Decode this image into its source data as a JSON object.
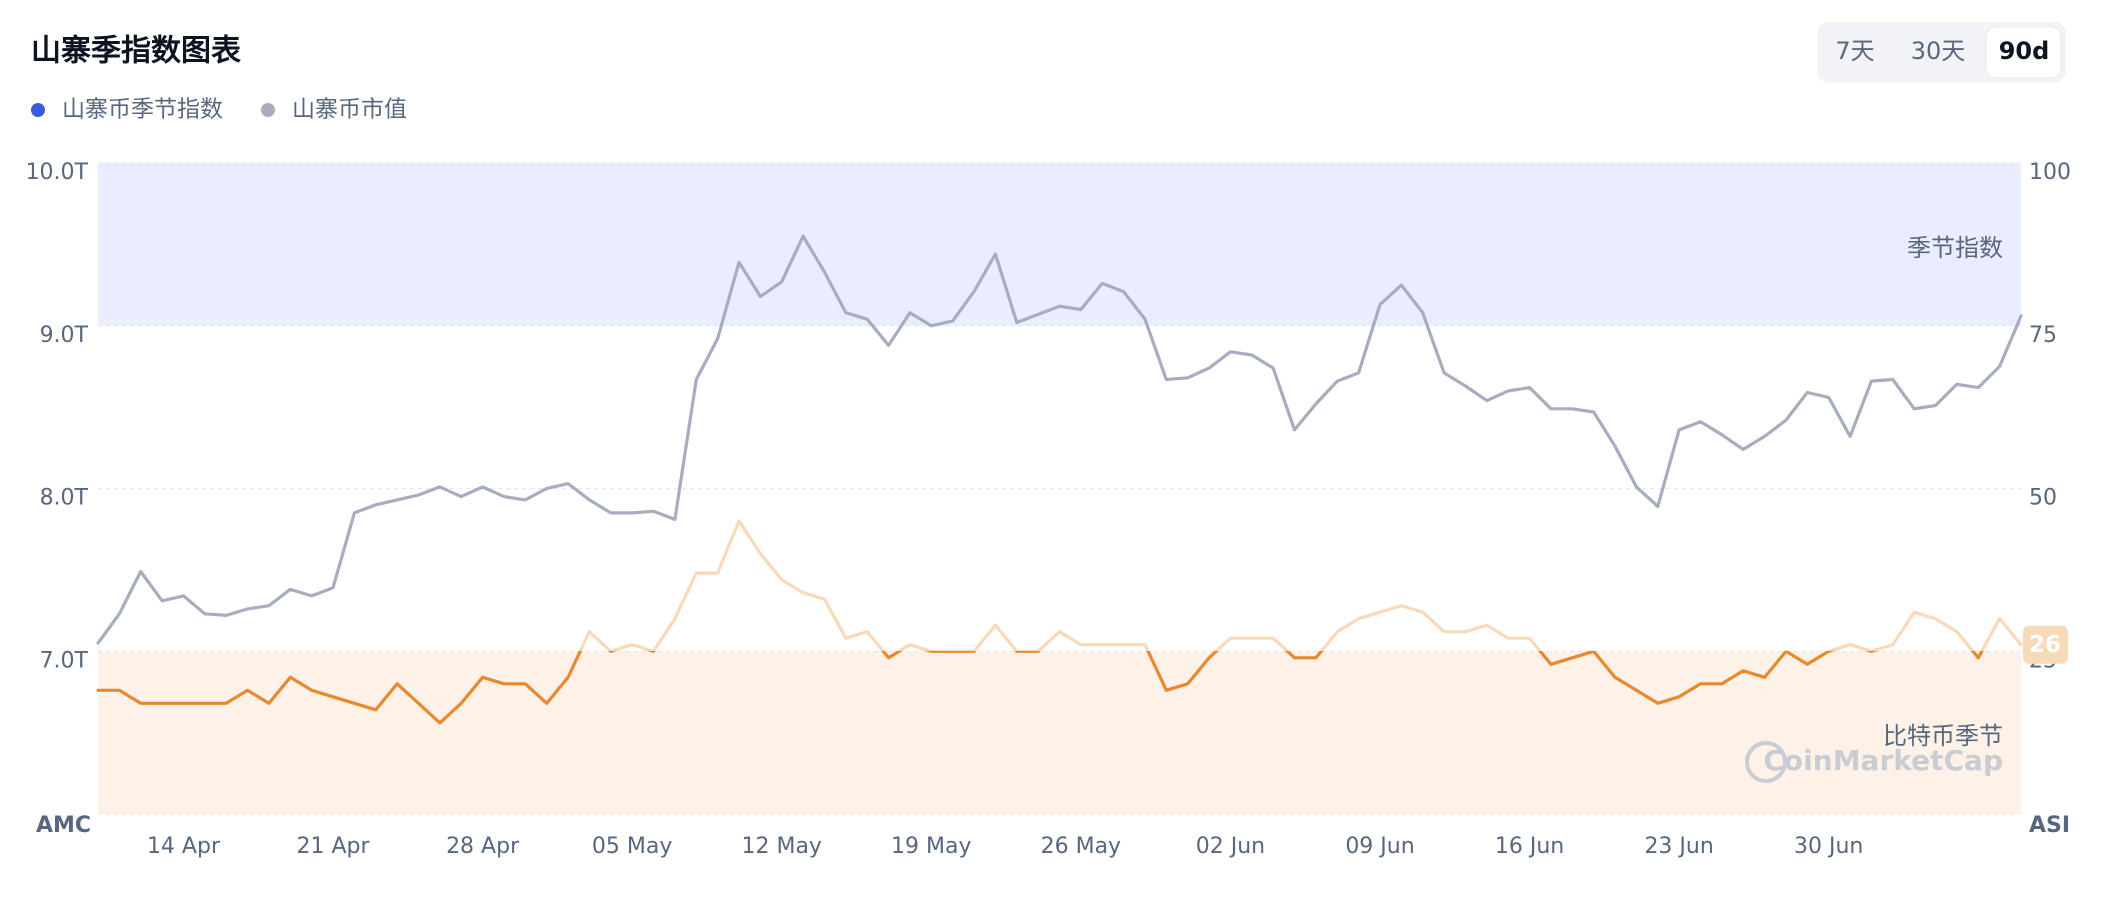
{
  "chart_data": {
    "type": "line",
    "title": "山寨季指数图表",
    "controls": {
      "buttons": [
        "7天",
        "30天",
        "90d"
      ],
      "active": 2
    },
    "categories": [
      null,
      null,
      null,
      null,
      "14 Apr",
      null,
      null,
      null,
      null,
      null,
      null,
      "21 Apr",
      null,
      null,
      null,
      null,
      null,
      null,
      "28 Apr",
      null,
      null,
      null,
      null,
      null,
      null,
      "05 May",
      null,
      null,
      null,
      null,
      null,
      null,
      "12 May",
      null,
      null,
      null,
      null,
      null,
      null,
      "19 May",
      null,
      null,
      null,
      null,
      null,
      null,
      "26 May",
      null,
      null,
      null,
      null,
      null,
      null,
      "02 Jun",
      null,
      null,
      null,
      null,
      null,
      null,
      "09 Jun",
      null,
      null,
      null,
      null,
      null,
      null,
      "16 Jun",
      null,
      null,
      null,
      null,
      null,
      null,
      "23 Jun",
      null,
      null,
      null,
      null,
      null,
      null,
      "30 Jun",
      null,
      null,
      null,
      null,
      null,
      null,
      null,
      null,
      null
    ],
    "series": [
      {
        "name": "山寨币季节指数",
        "color": "#3b5bdb",
        "line_color": "#e8892f",
        "line_color_above": "#f8d9b8",
        "axis": "y2",
        "values": [
          19,
          19,
          17,
          17,
          17,
          17,
          17,
          19,
          17,
          21,
          19,
          18,
          17,
          16,
          20,
          17,
          14,
          17,
          21,
          20,
          20,
          17,
          21,
          28,
          25,
          26,
          25,
          30,
          37,
          37,
          45,
          40,
          36,
          34,
          33,
          27,
          28,
          24,
          26,
          25,
          25,
          25,
          29,
          25,
          25,
          28,
          26,
          26,
          26,
          26,
          19,
          20,
          24,
          27,
          27,
          27,
          24,
          24,
          28,
          30,
          31,
          32,
          31,
          28,
          28,
          29,
          27,
          27,
          23,
          24,
          25,
          21,
          19,
          17,
          18,
          20,
          20,
          22,
          21,
          25,
          23,
          25,
          26,
          25,
          26,
          31,
          30,
          28,
          24,
          30,
          26
        ]
      },
      {
        "name": "山寨币市值",
        "color": "#a7acbf",
        "values": [
          7.05,
          7.23,
          7.49,
          7.31,
          7.34,
          7.23,
          7.22,
          7.26,
          7.28,
          7.38,
          7.34,
          7.39,
          7.85,
          7.9,
          7.93,
          7.96,
          8.01,
          7.95,
          8.01,
          7.95,
          7.93,
          8.0,
          8.03,
          7.93,
          7.85,
          7.85,
          7.86,
          7.81,
          8.67,
          8.92,
          9.39,
          9.18,
          9.27,
          9.55,
          9.33,
          9.08,
          9.04,
          8.88,
          9.08,
          9.0,
          9.03,
          9.21,
          9.44,
          9.02,
          9.07,
          9.12,
          9.1,
          9.26,
          9.21,
          9.04,
          8.67,
          8.68,
          8.74,
          8.84,
          8.82,
          8.74,
          8.36,
          8.52,
          8.66,
          8.71,
          9.13,
          9.25,
          9.08,
          8.71,
          8.63,
          8.54,
          8.6,
          8.62,
          8.49,
          8.49,
          8.47,
          8.26,
          8.01,
          7.89,
          8.36,
          8.41,
          8.33,
          8.24,
          8.32,
          8.42,
          8.59,
          8.56,
          8.32,
          8.66,
          8.67,
          8.49,
          8.51,
          8.64,
          8.62,
          8.75,
          9.06
        ]
      }
    ],
    "ylim": [
      6,
      10
    ],
    "yticks": [
      {
        "value": 7,
        "label": "7.0T"
      },
      {
        "value": 8,
        "label": "8.0T"
      },
      {
        "value": 9,
        "label": "9.0T"
      },
      {
        "value": 10,
        "label": "10.0T"
      }
    ],
    "y2lim": [
      0,
      100
    ],
    "y2ticks": [
      25,
      50,
      75,
      100
    ],
    "ylabel": "AMC",
    "y2label": "ASI",
    "bands": [
      {
        "label": "季节指数",
        "range": [
          75,
          100
        ],
        "color": "#eaedff"
      },
      {
        "label": "比特币季节",
        "range": [
          0,
          25
        ],
        "color": "#fdf1e8"
      }
    ],
    "watermark": "CoinMarketCap",
    "grid": true
  }
}
